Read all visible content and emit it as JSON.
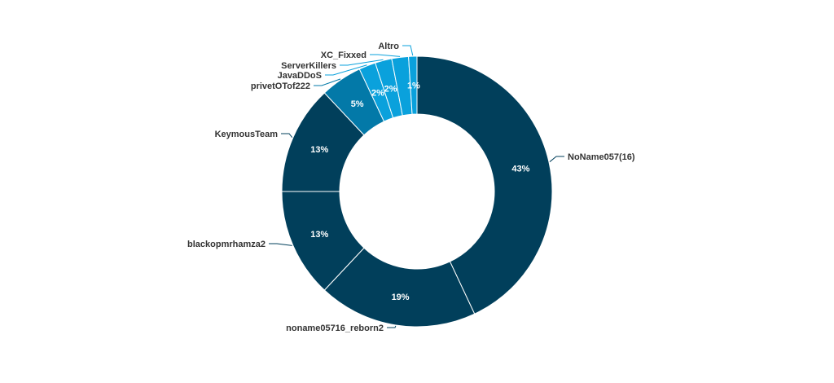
{
  "chart_data": {
    "type": "pie",
    "variant": "donut",
    "title": "",
    "legend": "none",
    "slices": [
      {
        "label": "NoName057(16)",
        "value": 43,
        "pct_label": "43%",
        "color": "#013f5b",
        "leader_color": "#013f5b"
      },
      {
        "label": "noname05716_reborn2",
        "value": 19,
        "pct_label": "19%",
        "color": "#013f5b",
        "leader_color": "#013f5b"
      },
      {
        "label": "blackopmrhamza2",
        "value": 13,
        "pct_label": "13%",
        "color": "#013f5b",
        "leader_color": "#013f5b"
      },
      {
        "label": "KeymousTeam",
        "value": 13,
        "pct_label": "13%",
        "color": "#013f5b",
        "leader_color": "#013f5b"
      },
      {
        "label": "privetOTof222",
        "value": 5,
        "pct_label": "5%",
        "color": "#0379a8",
        "leader_color": "#0379a8"
      },
      {
        "label": "JavaDDoS",
        "value": 2,
        "pct_label": "2%",
        "color": "#0aa1dc",
        "leader_color": "#0aa1dc"
      },
      {
        "label": "ServerKillers",
        "value": 2,
        "pct_label": "2%",
        "color": "#0aa1dc",
        "leader_color": "#0aa1dc"
      },
      {
        "label": "XC_Fixxed",
        "value": 2,
        "pct_label": "",
        "color": "#0aa1dc",
        "leader_color": "#0aa1dc"
      },
      {
        "label": "Altro",
        "value": 1,
        "pct_label": "1%",
        "color": "#0aa1dc",
        "leader_color": "#0aa1dc"
      }
    ]
  }
}
